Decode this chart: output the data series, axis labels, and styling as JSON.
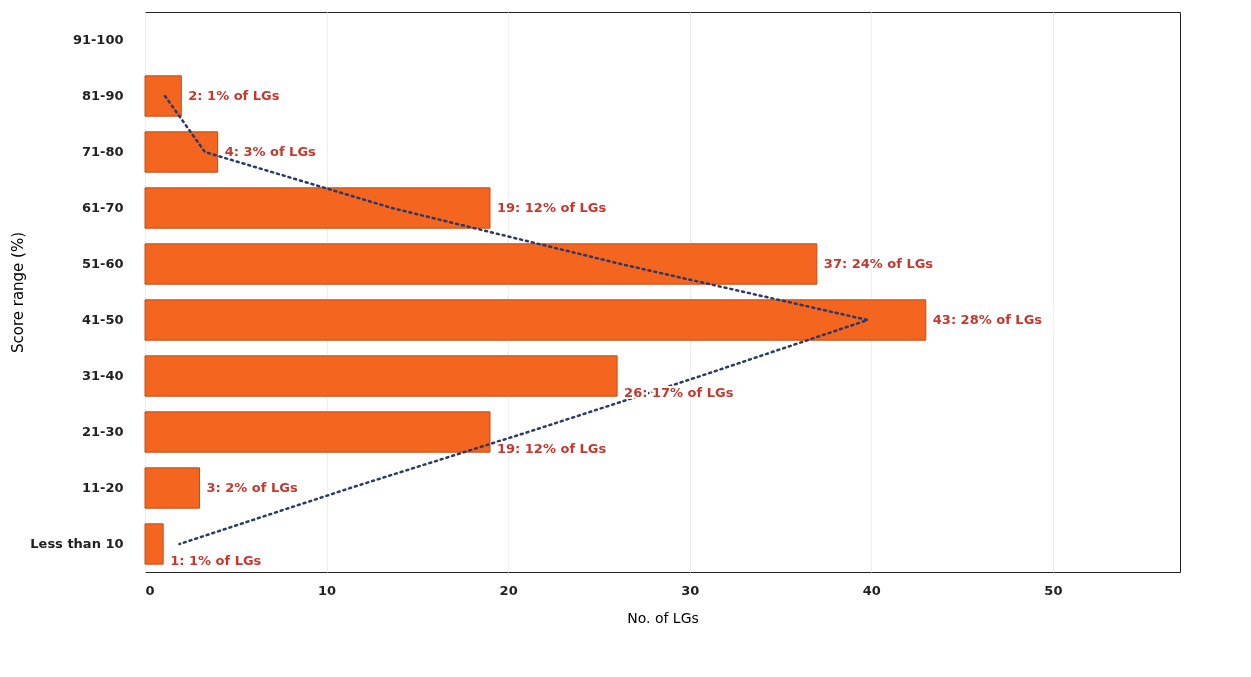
{
  "chart_data": {
    "type": "bar",
    "orientation": "horizontal",
    "xlabel": "No. of LGs",
    "ylabel": "Score range (%)",
    "categories": [
      "91-100",
      "81-90",
      "71-80",
      "61-70",
      "51-60",
      "41-50",
      "31-40",
      "21-30",
      "11-20",
      "Less than 10"
    ],
    "series": [
      {
        "color": "#f4651f",
        "values": [
          null,
          2,
          4,
          19,
          37,
          43,
          26,
          19,
          3,
          1
        ],
        "value_labels": [
          null,
          "2: 1% of LGs",
          "4: 3% of LGs",
          "19: 12% of LGs",
          "37: 24% of LGs",
          "43: 28% of LGs",
          "26: 17% of LGs",
          "19: 12% of LGs",
          "3: 2% of LGs",
          "1: 1% of LGs"
        ]
      },
      {
        "type": "line",
        "color": "#2b3a67",
        "line_style": "dotted",
        "values": [
          null,
          1.1,
          3.3,
          13.6,
          26.2,
          39.8,
          30.6,
          21.1,
          11.3,
          1.9
        ]
      }
    ],
    "xlim": [
      0,
      57
    ],
    "xticks": [
      0,
      10,
      20,
      30,
      40,
      50
    ],
    "grid": "x"
  }
}
